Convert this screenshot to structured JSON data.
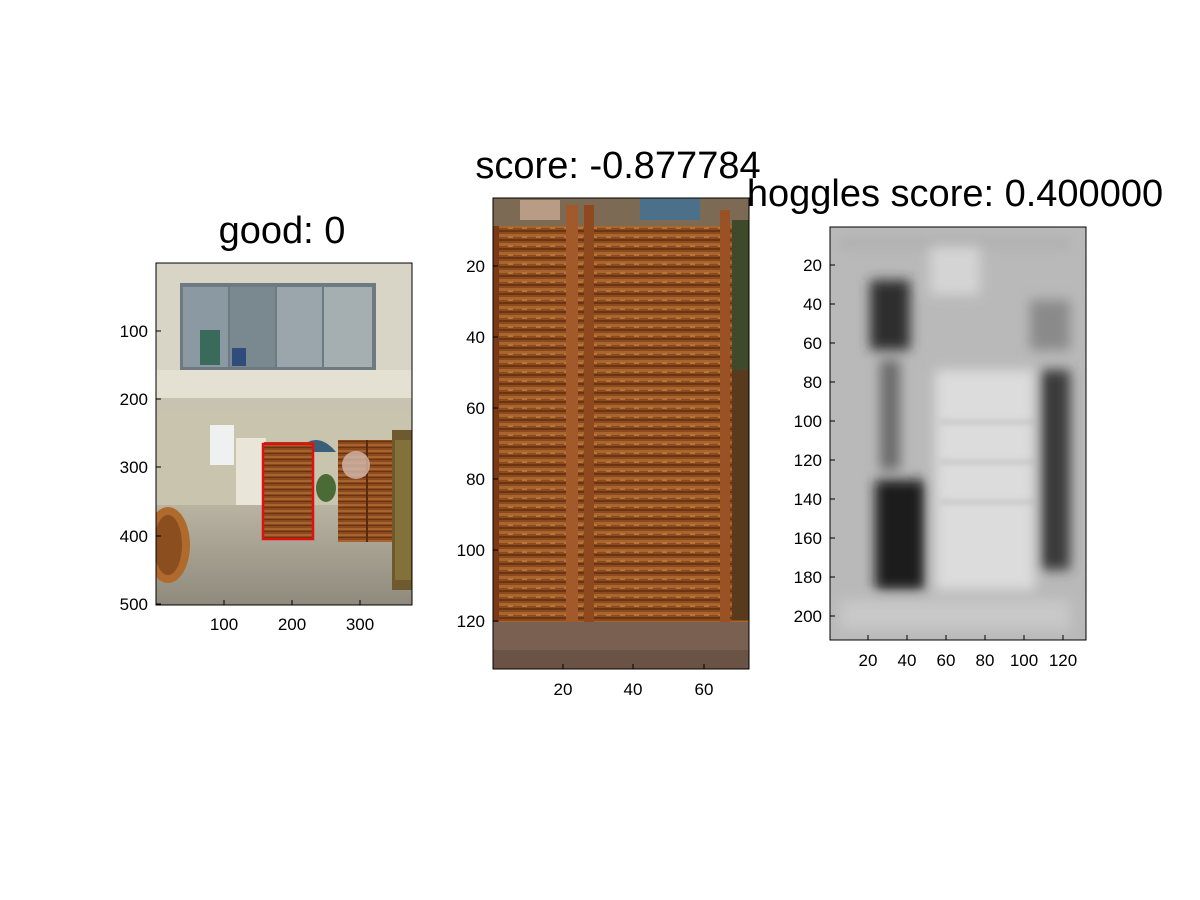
{
  "panels": [
    {
      "title": "good: 0",
      "x_ticks": [
        "100",
        "200",
        "300"
      ],
      "y_ticks": [
        "100",
        "200",
        "300",
        "400",
        "500"
      ],
      "image": "photo-of-room-with-wicker-folding-screen",
      "bbox_label_color": "#e01010"
    },
    {
      "title": "score: -0.877784",
      "x_ticks": [
        "20",
        "40",
        "60"
      ],
      "y_ticks": [
        "20",
        "40",
        "60",
        "80",
        "100",
        "120"
      ],
      "image": "crop-of-wicker-folding-screen"
    },
    {
      "title": "hoggles score: 0.400000",
      "x_ticks": [
        "20",
        "40",
        "60",
        "80",
        "100",
        "120"
      ],
      "y_ticks": [
        "20",
        "40",
        "60",
        "80",
        "100",
        "120",
        "140",
        "160",
        "180",
        "200"
      ],
      "image": "grayscale-hoggles-reconstruction"
    }
  ],
  "colors": {
    "box": "#e01010",
    "wood": "#8a4a1e",
    "wall": "#d8d3c0"
  }
}
